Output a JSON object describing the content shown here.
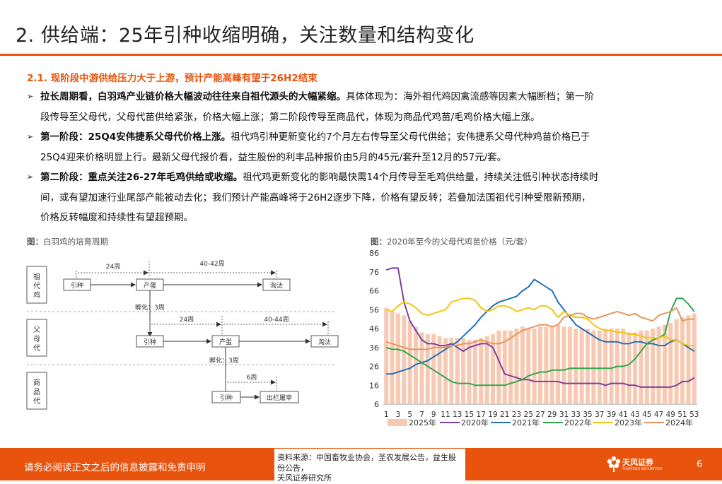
{
  "page": {
    "title": "2. 供给端：25年引种收缩明确，关注数量和结构变化",
    "subheading": "2.1. 现阶段中游供给压力大于上游，预计产能高峰有望于26H2结束",
    "bullets": [
      {
        "bold": "拉长周期看，白羽鸡产业链价格大幅波动往往来自祖代源头的大幅紧缩。",
        "line1": "具体体现为：海外祖代鸡因禽流感等因素大幅断档；第一阶",
        "line2": "段传导至父母代，父母代苗供给紧张，价格大幅上涨；第二阶段传导至商品代，体现为商品代鸡苗/毛鸡价格大幅上涨。",
        "line3": ""
      },
      {
        "bold": "第一阶段：25Q4安伟捷系父母代价格上涨。",
        "line1": "祖代鸡引种更新变化约7个月左右传导至父母代供给；安伟捷系父母代种鸡苗价格已于",
        "line2": "25Q4迎来价格明显上行。最新父母代报价看，益生股份的利丰品种报价由5月的45元/套升至12月的57元/套。",
        "line3": ""
      },
      {
        "bold": "第二阶段：重点关注26-27年毛鸡供给或收缩。",
        "line1": "祖代鸡更新变化的影响最快需14个月传导至毛鸡供给量，持续关注低引种状态持续时",
        "line2": "间，或有望加速行业尾部产能被动去化；我们预计产能高峰将于26H2逐步下降，价格有望反转；若叠加法国祖代引种受限新预期，",
        "line3": "价格反转幅度和持续性有望超预期。"
      }
    ]
  },
  "figure_left": {
    "caption_prefix": "图：",
    "caption": "白羽鸡的培育周期",
    "rows": [
      "祖代鸡",
      "父母代",
      "商品代"
    ],
    "boxes": {
      "gp_intro": "引种",
      "gp_lay": "产蛋",
      "gp_cull": "淘汰",
      "pp_intro": "引种",
      "pp_lay": "产蛋",
      "pp_cull": "淘汰",
      "cc_intro": "引种",
      "cc_out": "出栏屠宰"
    },
    "labels": {
      "gp_w1": "24周",
      "gp_w2": "40-42周",
      "hatch1": "孵化：3周",
      "pp_w1": "24周",
      "pp_w2": "40-44周",
      "hatch2": "孵化：3周",
      "cc_w": "6周"
    }
  },
  "figure_right": {
    "caption_prefix": "图：",
    "caption": "2020年至今的父母代鸡苗价格（元/套）"
  },
  "chart_data": {
    "type": "line",
    "title": "2020年至今的父母代鸡苗价格（元/套）",
    "ylim": [
      6,
      86
    ],
    "yticks": [
      6,
      16,
      26,
      36,
      46,
      56,
      66,
      76,
      86
    ],
    "x": [
      1,
      2,
      3,
      4,
      5,
      6,
      7,
      8,
      9,
      10,
      11,
      12,
      13,
      14,
      15,
      16,
      17,
      18,
      19,
      20,
      21,
      22,
      23,
      24,
      25,
      26,
      27,
      28,
      29,
      30,
      31,
      32,
      33,
      34,
      35,
      36,
      37,
      38,
      39,
      40,
      41,
      42,
      43,
      44,
      45,
      46,
      47,
      48,
      49,
      50,
      51,
      52,
      53
    ],
    "xtick_labels": [
      "1",
      "3",
      "5",
      "7",
      "9",
      "11",
      "13",
      "15",
      "17",
      "19",
      "21",
      "23",
      "25",
      "27",
      "29",
      "31",
      "33",
      "35",
      "37",
      "39",
      "41",
      "43",
      "45",
      "47",
      "49",
      "51",
      "53"
    ],
    "series": [
      {
        "name": "2025年",
        "kind": "bar",
        "color": "#f8c9b2",
        "values": [
          57,
          55,
          54,
          53,
          50,
          47,
          44,
          43,
          43,
          42,
          41,
          41,
          41,
          41,
          40,
          40,
          41,
          42,
          43,
          45,
          45,
          45,
          46,
          47,
          46,
          46,
          47,
          47,
          47,
          48,
          47,
          47,
          46,
          46,
          46,
          45,
          45,
          46,
          46,
          46,
          46,
          44,
          44,
          45,
          45,
          46,
          47,
          48,
          49,
          51,
          52,
          53,
          54
        ]
      },
      {
        "name": "2020年",
        "kind": "line",
        "color": "#7b3fa0",
        "values": [
          77,
          78,
          78,
          60,
          50,
          45,
          40,
          38,
          38,
          37,
          37,
          38,
          36,
          34,
          36,
          37,
          38,
          38,
          36,
          29,
          22,
          21,
          20,
          19,
          19,
          18,
          18,
          18,
          18,
          18,
          17,
          17,
          17,
          17,
          17,
          17,
          17,
          16,
          17,
          17,
          17,
          16,
          16,
          15,
          15,
          15,
          15,
          15,
          15,
          16,
          18,
          18,
          20
        ]
      },
      {
        "name": "2021年",
        "kind": "line",
        "color": "#2271b7",
        "values": [
          22,
          22,
          23,
          24,
          25,
          27,
          28,
          29,
          31,
          33,
          35,
          37,
          39,
          42,
          45,
          48,
          52,
          55,
          58,
          60,
          61,
          62,
          63,
          66,
          68,
          72,
          70,
          68,
          66,
          60,
          56,
          52,
          48,
          46,
          44,
          42,
          40,
          39,
          39,
          39,
          38,
          38,
          39,
          39,
          38,
          38,
          37,
          37,
          39,
          40,
          38,
          36,
          34
        ]
      },
      {
        "name": "2022年",
        "kind": "line",
        "color": "#2ea84f",
        "values": [
          36,
          35,
          35,
          34,
          32,
          30,
          28,
          26,
          24,
          22,
          20,
          18,
          17,
          17,
          17,
          16,
          16,
          16,
          16,
          16,
          16,
          17,
          18,
          19,
          21,
          22,
          23,
          23,
          24,
          24,
          24,
          25,
          25,
          25,
          25,
          25,
          25,
          25,
          25,
          26,
          26,
          27,
          30,
          34,
          38,
          40,
          41,
          43,
          55,
          62,
          62,
          59,
          55
        ]
      },
      {
        "name": "2023年",
        "kind": "line",
        "color": "#f2c511",
        "values": [
          56,
          55,
          58,
          60,
          59,
          57,
          54,
          53,
          54,
          55,
          56,
          60,
          61,
          62,
          62,
          61,
          57,
          55,
          56,
          58,
          58,
          57,
          55,
          56,
          57,
          56,
          58,
          58,
          56,
          52,
          55,
          53,
          52,
          52,
          51,
          48,
          46,
          45,
          45,
          44,
          44,
          43,
          43,
          42,
          41,
          41,
          41,
          42,
          40,
          40,
          38,
          37,
          37
        ]
      },
      {
        "name": "2024年",
        "kind": "line",
        "color": "#e8945a",
        "values": [
          39,
          38,
          37,
          36,
          35,
          35,
          35,
          35,
          36,
          36,
          36,
          37,
          37,
          38,
          38,
          39,
          40,
          39,
          38,
          38,
          39,
          41,
          43,
          45,
          46,
          47,
          48,
          48,
          47,
          48,
          52,
          53,
          54,
          54,
          52,
          51,
          52,
          53,
          54,
          55,
          54,
          53,
          54,
          52,
          51,
          50,
          53,
          54,
          55,
          57,
          50,
          51,
          51
        ]
      }
    ]
  },
  "footer": {
    "disclaimer": "请务必阅读正文之后的信息披露和免责申明",
    "source_line1": "资料来源：中国畜牧业协会，圣农发展公告，益生股份公告，",
    "source_line2": "天风证券研究所",
    "logo_name": "天风证券",
    "logo_sub": "TIANFENG SECURITIES",
    "page_number": "6"
  },
  "colors": {
    "accent": "#e8530e"
  }
}
